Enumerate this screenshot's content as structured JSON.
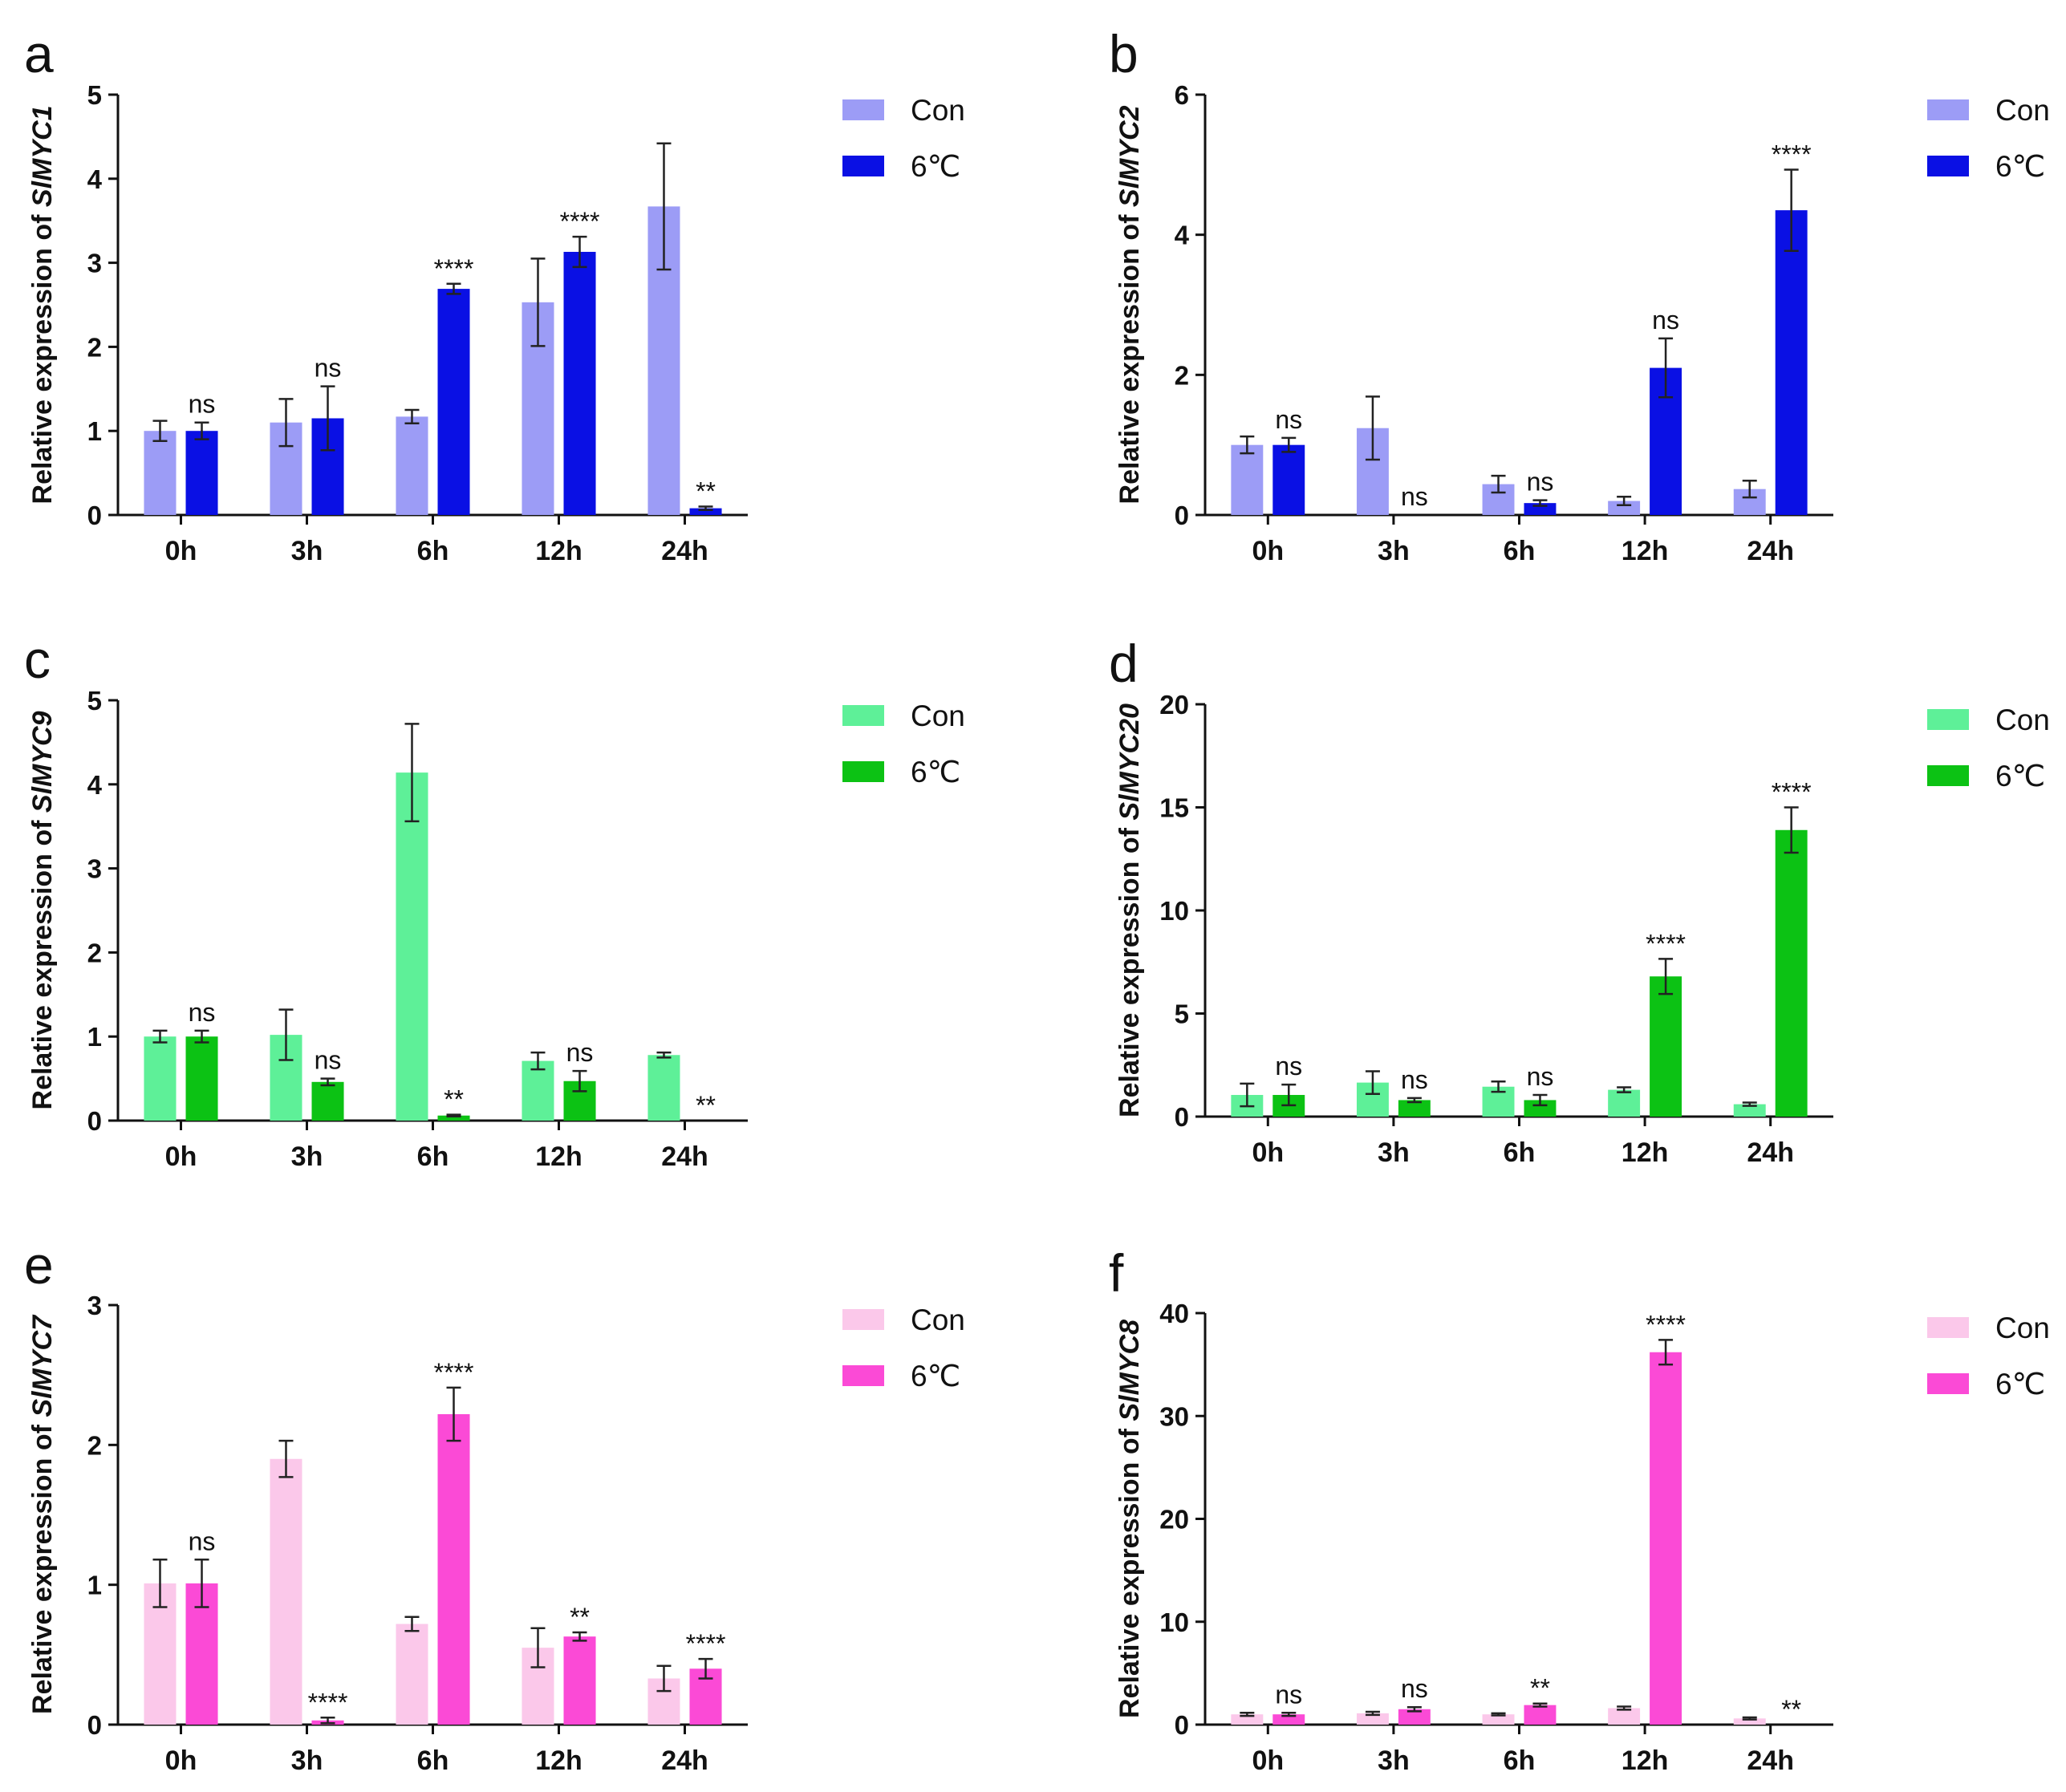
{
  "figure": {
    "colors": {
      "blue_con": "#9c9cf6",
      "blue_cold": "#0a10e4",
      "green_con": "#5ef098",
      "green_cold": "#0cc214",
      "pink_con": "#fbc8ea",
      "pink_cold": "#fb4ad6"
    }
  },
  "chart_data": [
    {
      "panel": "a",
      "type": "bar",
      "title": "",
      "xlabel": "",
      "ylabel_prefix": "Relative expression of ",
      "gene": "SlMYC1",
      "categories": [
        "0h",
        "3h",
        "6h",
        "12h",
        "24h"
      ],
      "ylim": [
        0,
        5
      ],
      "yticks": [
        "0",
        "1",
        "2",
        "3",
        "4",
        "5"
      ],
      "series": [
        {
          "name": "Con",
          "color": "#9c9cf6",
          "values": [
            1.0,
            1.1,
            1.17,
            2.53,
            3.67
          ],
          "errors": [
            0.12,
            0.28,
            0.08,
            0.52,
            0.75
          ]
        },
        {
          "name": "6℃",
          "color": "#0a10e4",
          "values": [
            1.0,
            1.15,
            2.69,
            3.13,
            0.08
          ],
          "errors": [
            0.1,
            0.38,
            0.06,
            0.18,
            0.02
          ]
        }
      ],
      "significance": [
        "ns",
        "ns",
        "****",
        "****",
        "**"
      ]
    },
    {
      "panel": "b",
      "type": "bar",
      "title": "",
      "xlabel": "",
      "ylabel_prefix": "Relative expression of ",
      "gene": "SlMYC2",
      "categories": [
        "0h",
        "3h",
        "6h",
        "12h",
        "24h"
      ],
      "ylim": [
        0,
        6
      ],
      "yticks": [
        "0",
        "2",
        "4",
        "6"
      ],
      "series": [
        {
          "name": "Con",
          "color": "#9c9cf6",
          "values": [
            1.0,
            1.24,
            0.44,
            0.2,
            0.37
          ],
          "errors": [
            0.12,
            0.45,
            0.12,
            0.06,
            0.12
          ]
        },
        {
          "name": "6℃",
          "color": "#0a10e4",
          "values": [
            1.0,
            0.0,
            0.17,
            2.1,
            4.35
          ],
          "errors": [
            0.1,
            0.0,
            0.04,
            0.42,
            0.58
          ]
        }
      ],
      "significance": [
        "ns",
        "ns",
        "ns",
        "ns",
        "****"
      ]
    },
    {
      "panel": "c",
      "type": "bar",
      "title": "",
      "xlabel": "",
      "ylabel_prefix": "Relative expression of ",
      "gene": "SlMYC9",
      "categories": [
        "0h",
        "3h",
        "6h",
        "12h",
        "24h"
      ],
      "ylim": [
        0,
        5
      ],
      "yticks": [
        "0",
        "1",
        "2",
        "3",
        "4",
        "5"
      ],
      "series": [
        {
          "name": "Con",
          "color": "#5ef098",
          "values": [
            1.0,
            1.02,
            4.14,
            0.71,
            0.78
          ],
          "errors": [
            0.07,
            0.3,
            0.58,
            0.1,
            0.03
          ]
        },
        {
          "name": "6℃",
          "color": "#0cc214",
          "values": [
            1.0,
            0.46,
            0.06,
            0.47,
            0.0
          ],
          "errors": [
            0.07,
            0.04,
            0.01,
            0.12,
            0.0
          ]
        }
      ],
      "significance": [
        "ns",
        "ns",
        "**",
        "ns",
        "**"
      ]
    },
    {
      "panel": "d",
      "type": "bar",
      "title": "",
      "xlabel": "",
      "ylabel_prefix": "Relative expression of ",
      "gene": "SlMYC20",
      "categories": [
        "0h",
        "3h",
        "6h",
        "12h",
        "24h"
      ],
      "ylim": [
        0,
        20
      ],
      "yticks": [
        "0",
        "5",
        "10",
        "15",
        "20"
      ],
      "series": [
        {
          "name": "Con",
          "color": "#5ef098",
          "values": [
            1.05,
            1.65,
            1.45,
            1.3,
            0.6
          ],
          "errors": [
            0.55,
            0.55,
            0.25,
            0.12,
            0.08
          ]
        },
        {
          "name": "6℃",
          "color": "#0cc214",
          "values": [
            1.05,
            0.8,
            0.8,
            6.8,
            13.9
          ],
          "errors": [
            0.5,
            0.1,
            0.25,
            0.85,
            1.1
          ]
        }
      ],
      "significance": [
        "ns",
        "ns",
        "ns",
        "****",
        "****"
      ]
    },
    {
      "panel": "e",
      "type": "bar",
      "title": "",
      "xlabel": "",
      "ylabel_prefix": "Relative expression of ",
      "gene": "SlMYC7",
      "categories": [
        "0h",
        "3h",
        "6h",
        "12h",
        "24h"
      ],
      "ylim": [
        0,
        3
      ],
      "yticks": [
        "0",
        "1",
        "2",
        "3"
      ],
      "series": [
        {
          "name": "Con",
          "color": "#fbc8ea",
          "values": [
            1.01,
            1.9,
            0.72,
            0.55,
            0.33
          ],
          "errors": [
            0.17,
            0.13,
            0.05,
            0.14,
            0.09
          ]
        },
        {
          "name": "6℃",
          "color": "#fb4ad6",
          "values": [
            1.01,
            0.03,
            2.22,
            0.63,
            0.4
          ],
          "errors": [
            0.17,
            0.02,
            0.19,
            0.03,
            0.07
          ]
        }
      ],
      "significance": [
        "ns",
        "****",
        "****",
        "**",
        "****"
      ]
    },
    {
      "panel": "f",
      "type": "bar",
      "title": "",
      "xlabel": "",
      "ylabel_prefix": "Relative expression of ",
      "gene": "SlMYC8",
      "categories": [
        "0h",
        "3h",
        "6h",
        "12h",
        "24h"
      ],
      "ylim": [
        0,
        40
      ],
      "yticks": [
        "0",
        "10",
        "20",
        "30",
        "40"
      ],
      "series": [
        {
          "name": "Con",
          "color": "#fbc8ea",
          "values": [
            1.0,
            1.1,
            1.0,
            1.6,
            0.6
          ],
          "errors": [
            0.15,
            0.15,
            0.1,
            0.15,
            0.1
          ]
        },
        {
          "name": "6℃",
          "color": "#fb4ad6",
          "values": [
            1.0,
            1.5,
            1.9,
            36.2,
            0.0
          ],
          "errors": [
            0.15,
            0.2,
            0.15,
            1.2,
            0.0
          ]
        }
      ],
      "significance": [
        "ns",
        "ns",
        "**",
        "****",
        "**"
      ]
    }
  ]
}
